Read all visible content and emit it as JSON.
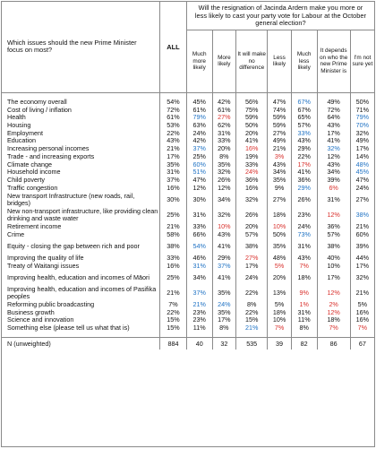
{
  "question_issue": "Which issues should the new Prime Minister focus on most?",
  "question_vote": "Will the resignation of Jacinda Ardern make you more or less likely to cast your party vote for Labour at the October general election?",
  "col_all": "ALL",
  "columns": [
    "Much more likely",
    "More likely",
    "It will make no difference",
    "Less likely",
    "Much less likely",
    "It depends on who the new Prime Minister is",
    "I'm not sure yet"
  ],
  "colors": {
    "higher": "#1f72c4",
    "lower": "#d9302c"
  },
  "rows": [
    {
      "label": "The economy overall",
      "all": "54%",
      "vals": [
        "45%",
        "42%",
        "56%",
        "47%",
        "67%",
        "49%",
        "50%"
      ],
      "flags": [
        "",
        "",
        "",
        "",
        "up",
        "",
        ""
      ]
    },
    {
      "label": "Cost of living / inflation",
      "all": "72%",
      "vals": [
        "61%",
        "61%",
        "75%",
        "74%",
        "67%",
        "72%",
        "71%"
      ],
      "flags": [
        "",
        "",
        "",
        "",
        "",
        "",
        ""
      ]
    },
    {
      "label": "Health",
      "all": "61%",
      "vals": [
        "79%",
        "27%",
        "59%",
        "59%",
        "65%",
        "64%",
        "79%"
      ],
      "flags": [
        "up",
        "dn",
        "",
        "",
        "",
        "",
        "up"
      ]
    },
    {
      "label": "Housing",
      "all": "53%",
      "vals": [
        "63%",
        "62%",
        "50%",
        "59%",
        "57%",
        "43%",
        "70%"
      ],
      "flags": [
        "",
        "",
        "",
        "",
        "",
        "",
        "up"
      ]
    },
    {
      "label": "Employment",
      "all": "22%",
      "vals": [
        "24%",
        "31%",
        "20%",
        "27%",
        "33%",
        "17%",
        "32%"
      ],
      "flags": [
        "",
        "",
        "",
        "",
        "up",
        "",
        ""
      ]
    },
    {
      "label": "Education",
      "all": "43%",
      "vals": [
        "42%",
        "33%",
        "41%",
        "49%",
        "43%",
        "41%",
        "49%"
      ],
      "flags": [
        "",
        "",
        "",
        "",
        "",
        "",
        ""
      ]
    },
    {
      "label": "Increasing personal incomes",
      "all": "21%",
      "vals": [
        "37%",
        "20%",
        "16%",
        "21%",
        "29%",
        "32%",
        "17%"
      ],
      "flags": [
        "up",
        "",
        "dn",
        "",
        "",
        "up",
        ""
      ]
    },
    {
      "label": "Trade - and increasing exports",
      "all": "17%",
      "vals": [
        "25%",
        "8%",
        "19%",
        "3%",
        "22%",
        "12%",
        "14%"
      ],
      "flags": [
        "",
        "",
        "",
        "dn",
        "",
        "",
        ""
      ]
    },
    {
      "label": "Climate change",
      "all": "35%",
      "vals": [
        "60%",
        "35%",
        "33%",
        "43%",
        "17%",
        "43%",
        "48%"
      ],
      "flags": [
        "up",
        "",
        "",
        "",
        "dn",
        "",
        "up"
      ]
    },
    {
      "label": "Household income",
      "all": "31%",
      "vals": [
        "51%",
        "32%",
        "24%",
        "34%",
        "41%",
        "34%",
        "45%"
      ],
      "flags": [
        "up",
        "",
        "dn",
        "",
        "",
        "",
        "up"
      ]
    },
    {
      "label": "Child poverty",
      "all": "37%",
      "vals": [
        "47%",
        "26%",
        "36%",
        "35%",
        "36%",
        "39%",
        "47%"
      ],
      "flags": [
        "",
        "",
        "",
        "",
        "",
        "",
        ""
      ]
    },
    {
      "label": "Traffic congestion",
      "all": "16%",
      "vals": [
        "12%",
        "12%",
        "16%",
        "9%",
        "29%",
        "6%",
        "24%"
      ],
      "flags": [
        "",
        "",
        "",
        "",
        "up",
        "dn",
        ""
      ]
    },
    {
      "label": "New transport Infrastructure (new roads, rail, bridges)",
      "all": "30%",
      "vals": [
        "30%",
        "34%",
        "32%",
        "27%",
        "26%",
        "31%",
        "27%"
      ],
      "flags": [
        "",
        "",
        "",
        "",
        "",
        "",
        ""
      ],
      "tall": true
    },
    {
      "label": "New non-transport infrastructure, like providing clean drinking and waste water",
      "all": "25%",
      "vals": [
        "31%",
        "32%",
        "26%",
        "18%",
        "23%",
        "12%",
        "38%"
      ],
      "flags": [
        "",
        "",
        "",
        "",
        "",
        "dn",
        "up"
      ],
      "tall": true
    },
    {
      "label": "Retirement income",
      "all": "21%",
      "vals": [
        "33%",
        "10%",
        "20%",
        "10%",
        "24%",
        "36%",
        "21%"
      ],
      "flags": [
        "",
        "dn",
        "",
        "dn",
        "",
        "",
        ""
      ]
    },
    {
      "label": "Crime",
      "all": "58%",
      "vals": [
        "66%",
        "43%",
        "57%",
        "50%",
        "73%",
        "57%",
        "60%"
      ],
      "flags": [
        "",
        "",
        "",
        "",
        "up",
        "",
        ""
      ]
    },
    {
      "label": "Equity - closing the gap between rich and poor",
      "all": "38%",
      "vals": [
        "54%",
        "41%",
        "38%",
        "35%",
        "31%",
        "38%",
        "39%"
      ],
      "flags": [
        "up",
        "",
        "",
        "",
        "",
        "",
        ""
      ],
      "tall": true
    },
    {
      "label": "Improving the quality of life",
      "all": "33%",
      "vals": [
        "46%",
        "29%",
        "27%",
        "48%",
        "43%",
        "40%",
        "44%"
      ],
      "flags": [
        "",
        "",
        "dn",
        "",
        "",
        "",
        ""
      ]
    },
    {
      "label": "Treaty of Waitangi issues",
      "all": "16%",
      "vals": [
        "31%",
        "37%",
        "17%",
        "5%",
        "7%",
        "10%",
        "17%"
      ],
      "flags": [
        "up",
        "up",
        "",
        "dn",
        "dn",
        "",
        ""
      ]
    },
    {
      "label": "Improving health, education and incomes of Māori",
      "all": "25%",
      "vals": [
        "34%",
        "41%",
        "24%",
        "20%",
        "18%",
        "17%",
        "32%"
      ],
      "flags": [
        "",
        "",
        "",
        "",
        "",
        "",
        ""
      ],
      "tall": true
    },
    {
      "label": "Improving health, education and incomes of Pasifika peoples",
      "all": "21%",
      "vals": [
        "37%",
        "35%",
        "22%",
        "13%",
        "9%",
        "12%",
        "21%"
      ],
      "flags": [
        "up",
        "",
        "",
        "",
        "dn",
        "dn",
        ""
      ],
      "tall": true
    },
    {
      "label": "Reforming public broadcasting",
      "all": "7%",
      "vals": [
        "21%",
        "24%",
        "8%",
        "5%",
        "1%",
        "2%",
        "5%"
      ],
      "flags": [
        "up",
        "up",
        "",
        "",
        "dn",
        "dn",
        ""
      ]
    },
    {
      "label": "Business growth",
      "all": "22%",
      "vals": [
        "23%",
        "35%",
        "22%",
        "18%",
        "31%",
        "12%",
        "16%"
      ],
      "flags": [
        "",
        "",
        "",
        "",
        "",
        "dn",
        ""
      ]
    },
    {
      "label": "Science and innovation",
      "all": "15%",
      "vals": [
        "23%",
        "17%",
        "15%",
        "10%",
        "11%",
        "18%",
        "16%"
      ],
      "flags": [
        "",
        "",
        "",
        "",
        "",
        "",
        ""
      ]
    },
    {
      "label": "Something else (please tell us what that is)",
      "all": "15%",
      "vals": [
        "11%",
        "8%",
        "21%",
        "7%",
        "8%",
        "7%",
        "7%"
      ],
      "flags": [
        "",
        "",
        "up",
        "dn",
        "",
        "dn",
        "dn"
      ]
    }
  ],
  "footer": {
    "label": "N (unweighted)",
    "all": "884",
    "vals": [
      "40",
      "32",
      "535",
      "39",
      "82",
      "86",
      "67"
    ]
  }
}
